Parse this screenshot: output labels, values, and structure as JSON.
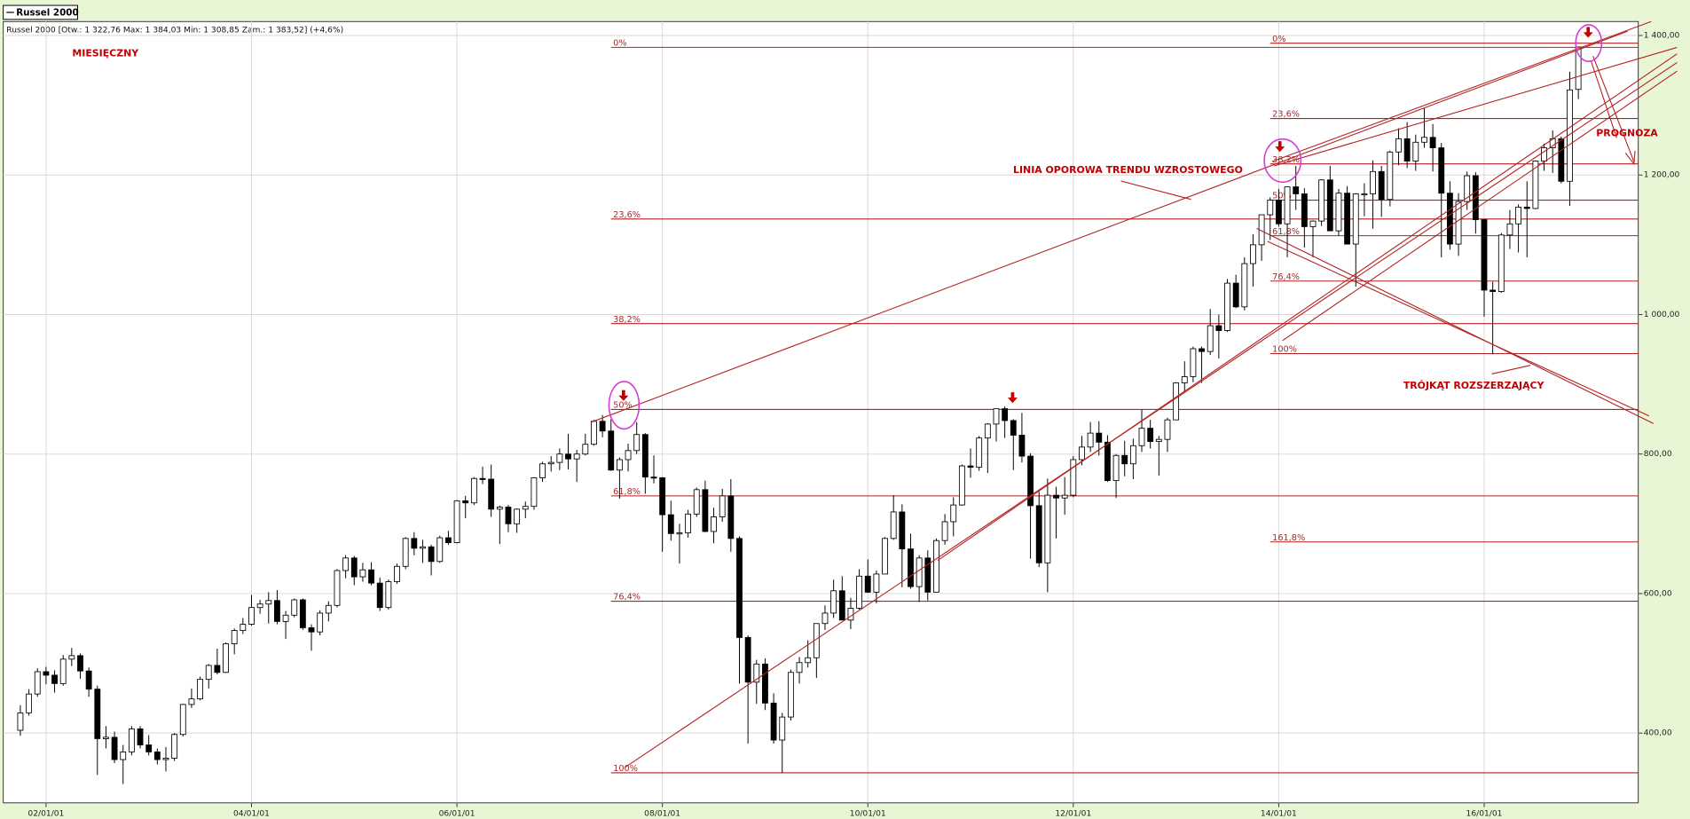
{
  "chart_data": {
    "type": "candlestick",
    "title": "Russel 2000 [Otw.: 1 322,76  Max: 1 384,03  Min: 1 308,85  Zam.: 1 383,52] (+4,6%)",
    "x": [
      "01/10/01",
      "01/11/01",
      "01/12/01",
      "02/01/01",
      "02/02/01",
      "02/03/01",
      "02/04/01",
      "02/05/01",
      "02/06/01",
      "02/07/01",
      "02/08/01",
      "02/09/01",
      "02/10/01",
      "02/11/01",
      "02/12/01",
      "03/01/01",
      "03/02/01",
      "03/03/01",
      "03/04/01",
      "03/05/01",
      "03/06/01",
      "03/07/01",
      "03/08/01",
      "03/09/01",
      "03/10/01",
      "03/11/01",
      "03/12/01",
      "04/01/01",
      "04/02/01",
      "04/03/01",
      "04/04/01",
      "04/05/01",
      "04/06/01",
      "04/07/01",
      "04/08/01",
      "04/09/01",
      "04/10/01",
      "04/11/01",
      "04/12/01",
      "05/01/01",
      "05/02/01",
      "05/03/01",
      "05/04/01",
      "05/05/01",
      "05/06/01",
      "05/07/01",
      "05/08/01",
      "05/09/01",
      "05/10/01",
      "05/11/01",
      "05/12/01",
      "06/01/01",
      "06/02/01",
      "06/03/01",
      "06/04/01",
      "06/05/01",
      "06/06/01",
      "06/07/01",
      "06/08/01",
      "06/09/01",
      "06/10/01",
      "06/11/01",
      "06/12/01",
      "07/01/01",
      "07/02/01",
      "07/03/01",
      "07/04/01",
      "07/05/01",
      "07/06/01",
      "07/07/01",
      "07/08/01",
      "07/09/01",
      "07/10/01",
      "07/11/01",
      "07/12/01",
      "08/01/01",
      "08/02/01",
      "08/03/01",
      "08/04/01",
      "08/05/01",
      "08/06/01",
      "08/07/01",
      "08/08/01",
      "08/09/01",
      "08/10/01",
      "08/11/01",
      "08/12/01",
      "09/01/01",
      "09/02/01",
      "09/03/01",
      "09/04/01",
      "09/05/01",
      "09/06/01",
      "09/07/01",
      "09/08/01",
      "09/09/01",
      "09/10/01",
      "09/11/01",
      "09/12/01",
      "10/01/01",
      "10/02/01",
      "10/03/01",
      "10/04/01",
      "10/05/01",
      "10/06/01",
      "10/07/01",
      "10/08/01",
      "10/09/01",
      "10/10/01",
      "10/11/01",
      "10/12/01",
      "11/01/01",
      "11/02/01",
      "11/03/01",
      "11/04/01",
      "11/05/01",
      "11/06/01",
      "11/07/01",
      "11/08/01",
      "11/09/01",
      "11/10/01",
      "11/11/01",
      "11/12/01",
      "12/01/01",
      "12/02/01",
      "12/03/01",
      "12/04/01",
      "12/05/01",
      "12/06/01",
      "12/07/01",
      "12/08/01",
      "12/09/01",
      "12/10/01",
      "12/11/01",
      "12/12/01",
      "13/01/01",
      "13/02/01",
      "13/03/01",
      "13/04/01",
      "13/05/01",
      "13/06/01",
      "13/07/01",
      "13/08/01",
      "13/09/01",
      "13/10/01",
      "13/11/01",
      "13/12/01",
      "14/01/01",
      "14/02/01",
      "14/03/01",
      "14/04/01",
      "14/05/01",
      "14/06/01",
      "14/07/01",
      "14/08/01",
      "14/09/01",
      "14/10/01",
      "14/11/01",
      "14/12/01",
      "15/01/01",
      "15/02/01",
      "15/03/01",
      "15/04/01",
      "15/05/01",
      "15/06/01",
      "15/07/01",
      "15/08/01",
      "15/09/01",
      "15/10/01",
      "15/11/01",
      "15/12/01",
      "16/01/01",
      "16/02/01",
      "16/03/01",
      "16/04/01",
      "16/05/01",
      "16/06/01",
      "16/07/01",
      "16/08/01",
      "16/09/01",
      "16/10/01",
      "16/11/01",
      "16/12/01"
    ],
    "series": [
      {
        "name": "Russel 2000",
        "up_color": "#ffffff",
        "down_color": "#000000",
        "open": [
          404,
          429,
          456,
          488,
          483,
          471,
          506,
          511,
          489,
          463,
          392,
          394,
          362,
          373,
          406,
          383,
          373,
          362,
          364,
          398,
          441,
          449,
          477,
          497,
          487,
          528,
          547,
          556,
          580,
          585,
          590,
          560,
          569,
          591,
          551,
          545,
          572,
          583,
          633,
          651,
          624,
          634,
          615,
          580,
          617,
          639,
          679,
          665,
          667,
          646,
          680,
          673,
          733,
          730,
          765,
          764,
          721,
          724,
          700,
          721,
          725,
          766,
          786,
          788,
          800,
          793,
          800,
          814,
          847,
          833,
          777,
          792,
          805,
          828,
          767,
          766,
          713,
          686,
          687,
          714,
          749,
          689,
          710,
          740,
          679,
          537,
          473,
          499,
          443,
          390,
          423,
          487,
          501,
          508,
          557,
          572,
          604,
          562,
          579,
          625,
          602,
          628,
          679,
          717,
          664,
          610,
          651,
          602,
          676,
          703,
          727,
          783,
          781,
          823,
          843,
          865,
          848,
          827,
          797,
          726,
          644,
          741,
          737,
          741,
          792,
          810,
          830,
          817,
          762,
          798,
          786,
          812,
          837,
          818,
          821,
          849,
          902,
          911,
          951,
          947,
          984,
          977,
          1045,
          1011,
          1073,
          1100,
          1143,
          1164,
          1130,
          1183,
          1173,
          1126,
          1134,
          1193,
          1120,
          1174,
          1101,
          1173,
          1173,
          1205,
          1165,
          1233,
          1252,
          1220,
          1247,
          1254,
          1239,
          1174,
          1101,
          1162,
          1199,
          1136,
          1035,
          1033,
          1114,
          1130,
          1154,
          1152,
          1220,
          1239,
          1252,
          1191,
          1322.76
        ],
        "high": [
          440,
          463,
          493,
          495,
          490,
          512,
          522,
          514,
          494,
          468,
          410,
          402,
          383,
          410,
          410,
          397,
          378,
          380,
          400,
          442,
          464,
          481,
          499,
          521,
          530,
          550,
          565,
          598,
          591,
          602,
          605,
          575,
          593,
          593,
          556,
          576,
          589,
          635,
          655,
          654,
          644,
          645,
          623,
          620,
          643,
          681,
          688,
          677,
          670,
          683,
          690,
          734,
          740,
          767,
          782,
          785,
          726,
          727,
          722,
          732,
          767,
          789,
          797,
          808,
          829,
          806,
          829,
          849,
          856,
          850,
          795,
          815,
          846,
          830,
          798,
          767,
          733,
          700,
          720,
          752,
          762,
          723,
          750,
          764,
          682,
          540,
          505,
          507,
          457,
          429,
          491,
          509,
          533,
          557,
          583,
          620,
          625,
          594,
          635,
          649,
          633,
          681,
          741,
          728,
          686,
          655,
          662,
          679,
          714,
          738,
          785,
          808,
          826,
          844,
          865,
          868,
          850,
          859,
          801,
          746,
          765,
          753,
          767,
          797,
          826,
          846,
          847,
          827,
          800,
          819,
          822,
          864,
          849,
          826,
          852,
          903,
          933,
          954,
          954,
          1008,
          1000,
          1051,
          1057,
          1082,
          1115,
          1143,
          1168,
          1180,
          1183,
          1213,
          1181,
          1135,
          1194,
          1213,
          1180,
          1184,
          1174,
          1188,
          1221,
          1213,
          1235,
          1267,
          1276,
          1258,
          1296,
          1273,
          1246,
          1191,
          1174,
          1205,
          1204,
          1137,
          1047,
          1117,
          1150,
          1158,
          1191,
          1221,
          1245,
          1264,
          1255,
          1348,
          1384.03
        ],
        "low": [
          396,
          425,
          452,
          470,
          458,
          468,
          496,
          478,
          452,
          340,
          378,
          357,
          327,
          368,
          378,
          368,
          355,
          345,
          360,
          395,
          436,
          447,
          464,
          484,
          486,
          513,
          542,
          554,
          571,
          557,
          556,
          535,
          566,
          548,
          518,
          540,
          560,
          580,
          622,
          612,
          617,
          612,
          575,
          577,
          614,
          635,
          655,
          644,
          626,
          644,
          670,
          672,
          708,
          727,
          757,
          710,
          671,
          688,
          687,
          708,
          720,
          760,
          775,
          777,
          778,
          760,
          798,
          812,
          824,
          776,
          736,
          775,
          800,
          743,
          758,
          660,
          676,
          643,
          680,
          710,
          688,
          672,
          703,
          660,
          471,
          385,
          442,
          433,
          385,
          343,
          418,
          471,
          494,
          479,
          548,
          565,
          562,
          549,
          577,
          601,
          586,
          628,
          677,
          609,
          607,
          588,
          590,
          602,
          670,
          682,
          726,
          766,
          776,
          773,
          818,
          823,
          777,
          788,
          650,
          638,
          602,
          679,
          713,
          738,
          784,
          803,
          798,
          760,
          737,
          768,
          764,
          803,
          808,
          769,
          803,
          849,
          889,
          903,
          902,
          942,
          937,
          975,
          1009,
          1006,
          1040,
          1077,
          1107,
          1126,
          1082,
          1150,
          1096,
          1082,
          1127,
          1120,
          1113,
          1101,
          1040,
          1141,
          1123,
          1140,
          1155,
          1214,
          1210,
          1206,
          1239,
          1205,
          1082,
          1093,
          1084,
          1150,
          1116,
          997,
          943,
          1031,
          1094,
          1089,
          1082,
          1151,
          1206,
          1203,
          1188,
          1156,
          1308.85
        ],
        "close": [
          429,
          456,
          488,
          483,
          471,
          506,
          511,
          489,
          463,
          392,
          394,
          362,
          373,
          406,
          383,
          373,
          362,
          364,
          398,
          441,
          449,
          477,
          497,
          487,
          528,
          547,
          556,
          580,
          585,
          590,
          560,
          569,
          591,
          551,
          545,
          572,
          583,
          633,
          651,
          624,
          634,
          615,
          580,
          617,
          639,
          679,
          665,
          667,
          646,
          680,
          673,
          733,
          730,
          765,
          764,
          721,
          724,
          700,
          721,
          725,
          766,
          786,
          788,
          800,
          793,
          800,
          814,
          847,
          833,
          777,
          792,
          805,
          828,
          767,
          766,
          713,
          686,
          687,
          714,
          749,
          689,
          710,
          740,
          679,
          537,
          473,
          499,
          443,
          390,
          423,
          487,
          501,
          508,
          557,
          572,
          604,
          562,
          579,
          625,
          602,
          628,
          679,
          717,
          664,
          610,
          651,
          602,
          676,
          703,
          727,
          783,
          781,
          823,
          843,
          865,
          848,
          827,
          797,
          726,
          644,
          741,
          737,
          741,
          792,
          810,
          830,
          817,
          762,
          798,
          786,
          812,
          837,
          818,
          821,
          849,
          902,
          911,
          951,
          947,
          984,
          977,
          1045,
          1011,
          1073,
          1100,
          1143,
          1164,
          1130,
          1183,
          1173,
          1126,
          1134,
          1193,
          1120,
          1174,
          1101,
          1173,
          1173,
          1205,
          1165,
          1233,
          1252,
          1220,
          1247,
          1254,
          1239,
          1174,
          1101,
          1162,
          1199,
          1136,
          1035,
          1033,
          1114,
          1130,
          1154,
          1152,
          1220,
          1239,
          1252,
          1191,
          1322,
          1383.52
        ]
      }
    ],
    "xlim": [
      "01/08/01",
      "17/07/01"
    ],
    "xticks": [
      "02/01/01",
      "04/01/01",
      "06/01/01",
      "08/01/01",
      "10/01/01",
      "12/01/01",
      "14/01/01",
      "16/01/01"
    ],
    "ylim": [
      300,
      1420
    ],
    "yticks": [
      {
        "value": 400,
        "label": "400,00"
      },
      {
        "value": 600,
        "label": "600,00"
      },
      {
        "value": 800,
        "label": "800,00"
      },
      {
        "value": 1000,
        "label": "1 000,00"
      },
      {
        "value": 1200,
        "label": "1 200,00"
      },
      {
        "value": 1400,
        "label": "1 400,00"
      }
    ],
    "grid": true,
    "fib_color": "#b22222",
    "fib_sets": [
      {
        "start": "07/07/01",
        "labels": [
          "0%",
          "23,6%",
          "38,2%",
          "50%",
          "61,8%",
          "76,4%",
          "100%"
        ],
        "values": [
          1383,
          1137,
          987,
          864,
          740,
          589,
          343
        ]
      },
      {
        "start": "13/12/01",
        "labels": [
          "0%",
          "23,6%",
          "38,2%",
          "50%",
          "61,8%",
          "76,4%",
          "100%",
          "161,8%"
        ],
        "values": [
          1389,
          1281,
          1216,
          1164,
          1113,
          1048,
          944,
          674
        ]
      }
    ],
    "annotations": [
      "MIESIĘCZNY",
      "LINIA OPOROWA TRENDU WZROSTOWEGO",
      "PROGNOZA",
      "TRÓJKĄT ROZSZERZAJĄCY"
    ]
  }
}
